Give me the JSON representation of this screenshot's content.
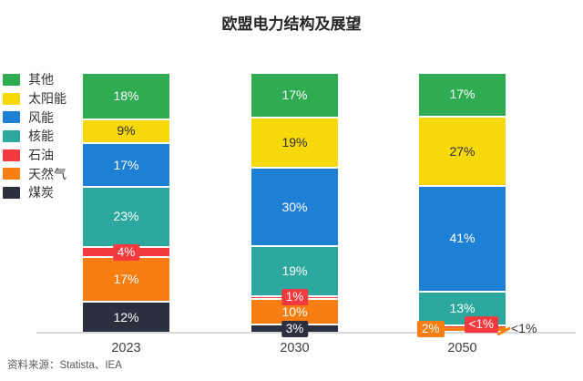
{
  "title": "欧盟电力结构及展望",
  "source": "资料来源：Statista、IEA",
  "chart_data": {
    "type": "bar",
    "stacked": true,
    "unit": "%",
    "title": "欧盟电力结构及展望",
    "categories": [
      "2023",
      "2030",
      "2050"
    ],
    "series": [
      {
        "id": "other",
        "name": "其他",
        "color": "#2fac52",
        "values": [
          18,
          17,
          17
        ],
        "labels": [
          "18%",
          "17%",
          "17%"
        ]
      },
      {
        "id": "solar",
        "name": "太阳能",
        "color": "#f6d90a",
        "text_color": "#2d2d2d",
        "values": [
          9,
          19,
          27
        ],
        "labels": [
          "9%",
          "19%",
          "27%"
        ]
      },
      {
        "id": "wind",
        "name": "风能",
        "color": "#1e80d4",
        "values": [
          17,
          30,
          41
        ],
        "labels": [
          "17%",
          "30%",
          "41%"
        ]
      },
      {
        "id": "nuclear",
        "name": "核能",
        "color": "#2ca89e",
        "values": [
          23,
          19,
          13
        ],
        "labels": [
          "23%",
          "19%",
          "13%"
        ]
      },
      {
        "id": "oil",
        "name": "石油",
        "color": "#f4393f",
        "values": [
          4,
          1,
          0.5
        ],
        "labels": [
          "4%",
          "1%",
          "<1%"
        ],
        "label_pos": [
          "auto",
          "auto",
          "right"
        ]
      },
      {
        "id": "gas",
        "name": "天然气",
        "color": "#f87e14",
        "values": [
          17,
          10,
          2
        ],
        "labels": [
          "17%",
          "10%",
          "2%"
        ],
        "label_pos": [
          "auto",
          "auto",
          "left"
        ]
      },
      {
        "id": "coal",
        "name": "煤炭",
        "color": "#2b2f3e",
        "values": [
          12,
          3,
          0.5
        ],
        "labels": [
          "12%",
          "3%",
          "<1%"
        ],
        "label_pos": [
          "auto",
          "auto",
          "outside"
        ]
      }
    ],
    "legend_position": "top-left",
    "ylim": [
      0,
      100
    ],
    "grid": false,
    "source": "资料来源：Statista、IEA"
  }
}
